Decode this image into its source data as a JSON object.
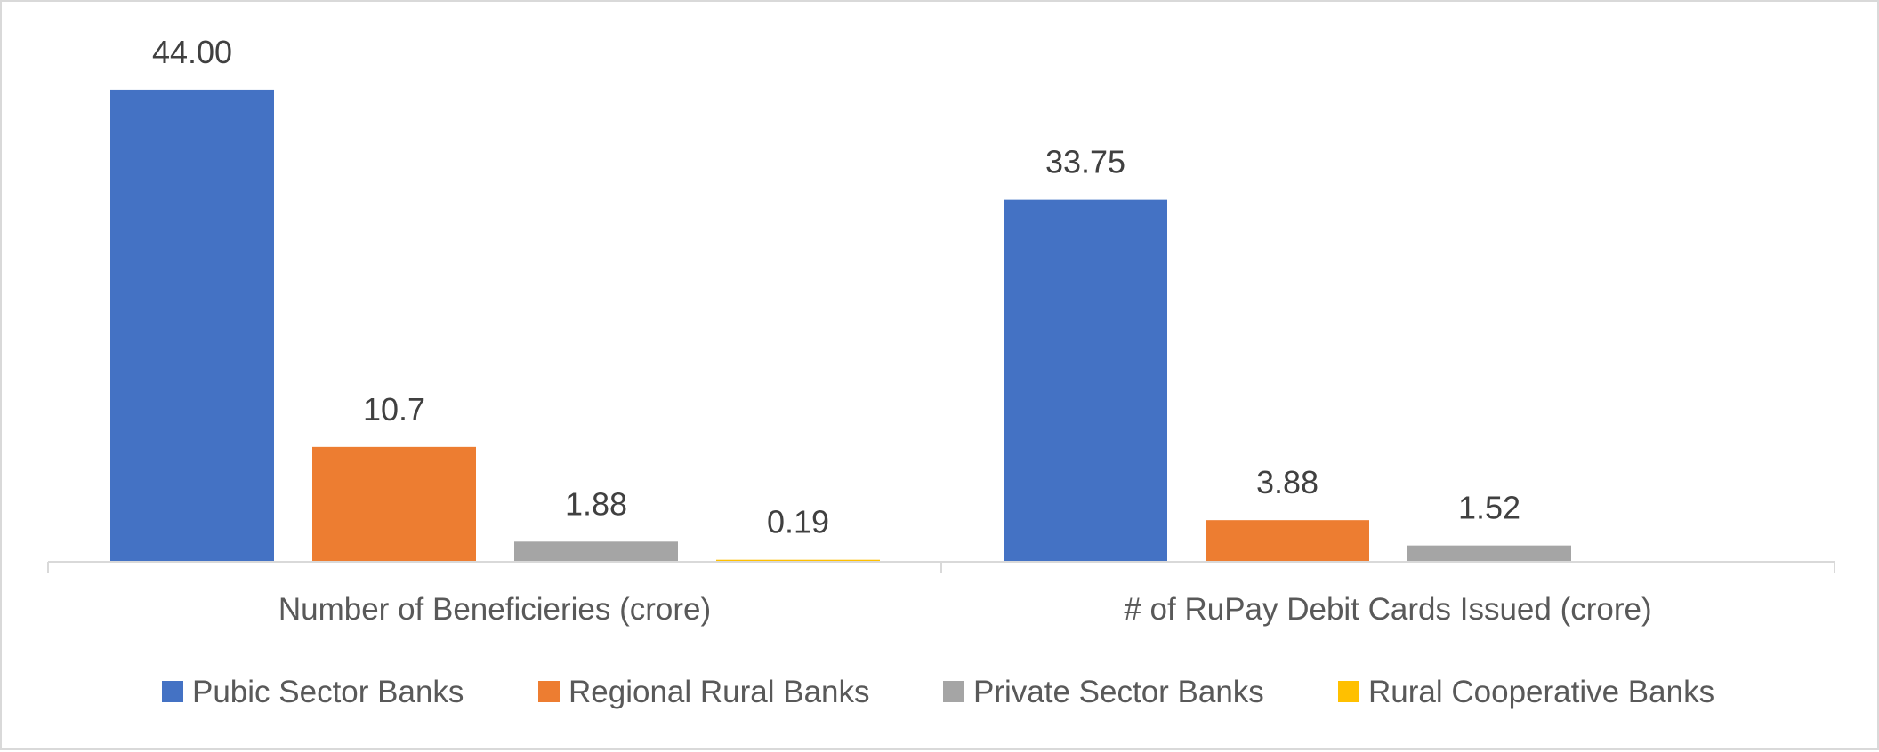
{
  "chart_data": {
    "type": "bar",
    "title": "",
    "xlabel": "",
    "ylabel": "",
    "ylim": [
      0,
      44
    ],
    "grid": false,
    "legend_position": "bottom",
    "categories": [
      "Number of Beneficieries (crore)",
      "# of RuPay Debit Cards Issued (crore)"
    ],
    "series": [
      {
        "name": "Pubic Sector Banks",
        "color": "#4472C4",
        "values": [
          44.0,
          33.75
        ],
        "labels": [
          "44.00",
          "33.75"
        ]
      },
      {
        "name": "Regional Rural Banks",
        "color": "#ED7D31",
        "values": [
          10.7,
          3.88
        ],
        "labels": [
          "10.7",
          "3.88"
        ]
      },
      {
        "name": "Private Sector Banks",
        "color": "#A5A5A5",
        "values": [
          1.88,
          1.52
        ],
        "labels": [
          "1.88",
          "1.52"
        ]
      },
      {
        "name": "Rural Cooperative Banks",
        "color": "#FFC000",
        "values": [
          0.19,
          null
        ],
        "labels": [
          "0.19",
          ""
        ]
      }
    ]
  }
}
